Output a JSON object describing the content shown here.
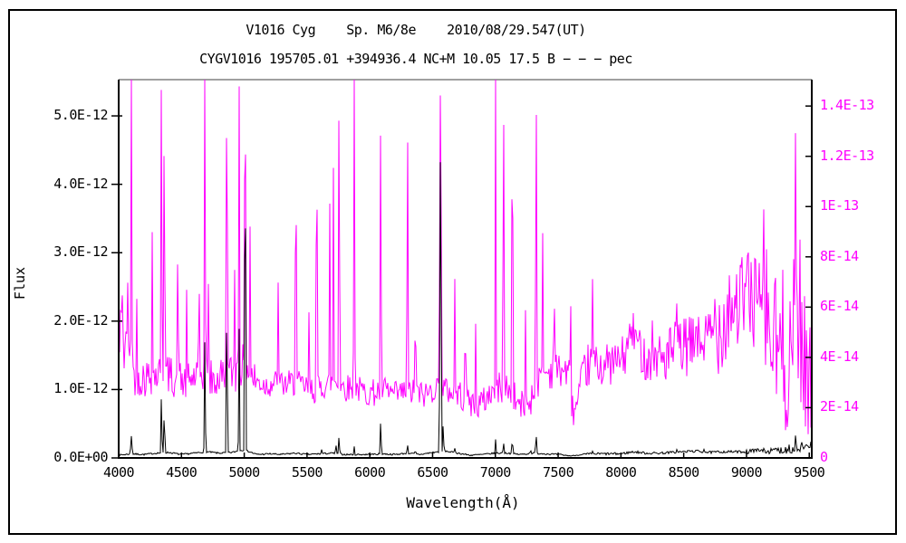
{
  "figure": {
    "title_line1": "V1016 Cyg    Sp. M6/8e    2010/08/29.547(UT)",
    "title_line2": "CYGV1016 195705.01 +394936.4 NC+M 10.05 17.5 B − − − pec"
  },
  "colors": {
    "background": "#ffffff",
    "border": "#000000",
    "frame_top_line": "#808080",
    "black_series": "#000000",
    "magenta_series": "#ff00ff"
  },
  "chart_data": {
    "type": "line",
    "title": "V1016 Cyg  Sp. M6/8e  2010/08/29.547(UT)",
    "subtitle": "CYGV1016 195705.01 +394936.4 NC+M 10.05 17.5 B − − − pec",
    "xlabel": "Wavelength(Å)",
    "ylabel_left": "Flux",
    "grid": false,
    "legend": "none",
    "x_range": [
      4000,
      9520
    ],
    "x_tick_values": [
      4000,
      4500,
      5000,
      5500,
      6000,
      6500,
      7000,
      7500,
      8000,
      8500,
      9000,
      9500
    ],
    "x_tick_labels": [
      "4000",
      "4500",
      "5000",
      "5500",
      "6000",
      "6500",
      "7000",
      "7500",
      "8000",
      "8500",
      "9000",
      "9500"
    ],
    "y_left": {
      "unit": "1e-12",
      "range": [
        0,
        5.53
      ],
      "tick_values": [
        0,
        1,
        2,
        3,
        4,
        5
      ],
      "tick_labels": [
        "0.0E+00",
        "1.0E-12",
        "2.0E-12",
        "3.0E-12",
        "4.0E-12",
        "5.0E-12"
      ],
      "color": "#000000"
    },
    "y_right": {
      "unit": "1e-14",
      "range": [
        0,
        15.05
      ],
      "tick_values": [
        0,
        2,
        4,
        6,
        8,
        10,
        12,
        14
      ],
      "tick_labels": [
        "0",
        "2E-14",
        "4E-14",
        "6E-14",
        "8E-14",
        "1E-13",
        "1.2E-13",
        "1.4E-13"
      ],
      "color": "#ff00ff"
    },
    "series": [
      {
        "name": "black-spectrum-left-axis",
        "axis": "left",
        "color": "#000000",
        "unit": "1e-12",
        "baseline": [
          [
            4000,
            0.04
          ],
          [
            4100,
            0.06
          ],
          [
            4200,
            0.05
          ],
          [
            4300,
            0.07
          ],
          [
            4400,
            0.08
          ],
          [
            4500,
            0.05
          ],
          [
            4600,
            0.07
          ],
          [
            4700,
            0.09
          ],
          [
            4800,
            0.07
          ],
          [
            4900,
            0.08
          ],
          [
            5000,
            0.12
          ],
          [
            5100,
            0.05
          ],
          [
            5200,
            0.06
          ],
          [
            5300,
            0.05
          ],
          [
            5400,
            0.07
          ],
          [
            5500,
            0.05
          ],
          [
            5600,
            0.06
          ],
          [
            5700,
            0.07
          ],
          [
            5800,
            0.05
          ],
          [
            5900,
            0.05
          ],
          [
            6000,
            0.05
          ],
          [
            6100,
            0.06
          ],
          [
            6200,
            0.05
          ],
          [
            6300,
            0.07
          ],
          [
            6400,
            0.05
          ],
          [
            6500,
            0.08
          ],
          [
            6600,
            0.1
          ],
          [
            6700,
            0.07
          ],
          [
            6800,
            0.04
          ],
          [
            6900,
            0.05
          ],
          [
            7000,
            0.07
          ],
          [
            7100,
            0.07
          ],
          [
            7200,
            0.05
          ],
          [
            7300,
            0.07
          ],
          [
            7400,
            0.06
          ],
          [
            7500,
            0.05
          ],
          [
            7600,
            0.03
          ],
          [
            7700,
            0.05
          ],
          [
            7800,
            0.06
          ],
          [
            7900,
            0.06
          ],
          [
            8000,
            0.06
          ],
          [
            8100,
            0.09
          ],
          [
            8200,
            0.07
          ],
          [
            8300,
            0.07
          ],
          [
            8400,
            0.08
          ],
          [
            8500,
            0.09
          ],
          [
            8600,
            0.1
          ],
          [
            8700,
            0.08
          ],
          [
            8800,
            0.09
          ],
          [
            8900,
            0.09
          ],
          [
            9000,
            0.09
          ],
          [
            9100,
            0.1
          ],
          [
            9200,
            0.1
          ],
          [
            9300,
            0.12
          ],
          [
            9400,
            0.13
          ],
          [
            9500,
            0.14
          ],
          [
            9520,
            0.12
          ]
        ],
        "peaks": [
          [
            4101,
            0.32,
            10
          ],
          [
            4340,
            0.95,
            8
          ],
          [
            4363,
            0.73,
            8
          ],
          [
            4686,
            1.8,
            8
          ],
          [
            4861,
            2.55,
            8
          ],
          [
            4959,
            2.08,
            7
          ],
          [
            5007,
            5.14,
            9
          ],
          [
            5617,
            0.13,
            7
          ],
          [
            5730,
            0.22,
            7
          ],
          [
            5755,
            0.36,
            7
          ],
          [
            5876,
            0.17,
            7
          ],
          [
            6087,
            0.64,
            7
          ],
          [
            6300,
            0.22,
            7
          ],
          [
            6363,
            0.12,
            7
          ],
          [
            6563,
            5.03,
            10
          ],
          [
            6584,
            0.5,
            8
          ],
          [
            6678,
            0.15,
            7
          ],
          [
            7002,
            0.28,
            7
          ],
          [
            7065,
            0.25,
            7
          ],
          [
            7135,
            0.32,
            7
          ],
          [
            7281,
            0.12,
            7
          ],
          [
            7325,
            0.35,
            9
          ],
          [
            7774,
            0.1,
            8
          ],
          [
            8446,
            0.13,
            7
          ],
          [
            8545,
            0.11,
            7
          ],
          [
            8620,
            0.11,
            7
          ],
          [
            8662,
            0.13,
            7
          ],
          [
            9069,
            0.16,
            7
          ],
          [
            9139,
            0.15,
            7
          ],
          [
            9229,
            0.16,
            7
          ],
          [
            9340,
            0.2,
            6
          ],
          [
            9392,
            0.4,
            7
          ],
          [
            9440,
            0.24,
            6
          ],
          [
            9480,
            0.26,
            6
          ],
          [
            9515,
            0.3,
            6
          ]
        ],
        "noise": [
          [
            4000,
            7550,
            0.012
          ],
          [
            7550,
            7700,
            0.006
          ],
          [
            7700,
            9000,
            0.018
          ],
          [
            9000,
            9250,
            0.04
          ],
          [
            9250,
            9520,
            0.06
          ]
        ],
        "min": 0.01
      },
      {
        "name": "magenta-spectrum-right-axis",
        "axis": "right",
        "color": "#ff00ff",
        "unit": "1e-14",
        "baseline": [
          [
            4000,
            4.2
          ],
          [
            4030,
            5.0
          ],
          [
            4060,
            3.6
          ],
          [
            4120,
            3.3
          ],
          [
            4200,
            3.2
          ],
          [
            4280,
            3.3
          ],
          [
            4360,
            3.4
          ],
          [
            4440,
            3.2
          ],
          [
            4520,
            3.0
          ],
          [
            4600,
            3.2
          ],
          [
            4680,
            3.4
          ],
          [
            4760,
            3.0
          ],
          [
            4840,
            3.4
          ],
          [
            4920,
            3.3
          ],
          [
            5000,
            3.8
          ],
          [
            5080,
            3.1
          ],
          [
            5160,
            2.9
          ],
          [
            5240,
            3.0
          ],
          [
            5320,
            2.9
          ],
          [
            5400,
            3.0
          ],
          [
            5480,
            2.8
          ],
          [
            5560,
            2.7
          ],
          [
            5640,
            2.9
          ],
          [
            5720,
            3.1
          ],
          [
            5800,
            2.8
          ],
          [
            5880,
            2.8
          ],
          [
            5960,
            2.6
          ],
          [
            6040,
            2.6
          ],
          [
            6120,
            2.7
          ],
          [
            6200,
            2.5
          ],
          [
            6280,
            2.6
          ],
          [
            6360,
            2.6
          ],
          [
            6440,
            2.5
          ],
          [
            6520,
            2.8
          ],
          [
            6600,
            2.7
          ],
          [
            6680,
            2.6
          ],
          [
            6760,
            2.4
          ],
          [
            6840,
            2.1
          ],
          [
            6900,
            2.2
          ],
          [
            6960,
            2.6
          ],
          [
            7020,
            2.8
          ],
          [
            7100,
            2.8
          ],
          [
            7160,
            2.3
          ],
          [
            7220,
            2.0
          ],
          [
            7280,
            2.3
          ],
          [
            7340,
            3.0
          ],
          [
            7400,
            3.4
          ],
          [
            7480,
            3.5
          ],
          [
            7560,
            3.5
          ],
          [
            7594,
            3.2
          ],
          [
            7615,
            1.9
          ],
          [
            7650,
            2.0
          ],
          [
            7690,
            3.1
          ],
          [
            7740,
            3.7
          ],
          [
            7800,
            3.7
          ],
          [
            7880,
            3.7
          ],
          [
            7960,
            3.8
          ],
          [
            8040,
            4.1
          ],
          [
            8085,
            5.1
          ],
          [
            8130,
            4.6
          ],
          [
            8200,
            3.9
          ],
          [
            8280,
            4.0
          ],
          [
            8360,
            4.0
          ],
          [
            8440,
            4.3
          ],
          [
            8520,
            4.4
          ],
          [
            8600,
            4.5
          ],
          [
            8680,
            4.7
          ],
          [
            8760,
            5.1
          ],
          [
            8840,
            5.7
          ],
          [
            8920,
            6.1
          ],
          [
            9000,
            6.4
          ],
          [
            9080,
            6.1
          ],
          [
            9150,
            5.6
          ],
          [
            9220,
            4.4
          ],
          [
            9290,
            4.1
          ],
          [
            9360,
            4.5
          ],
          [
            9420,
            4.6
          ],
          [
            9470,
            3.8
          ],
          [
            9520,
            2.8
          ]
        ],
        "peaks": [
          [
            4026,
            7.5,
            7
          ],
          [
            4070,
            8.5,
            7
          ],
          [
            4101,
            16,
            8
          ],
          [
            4144,
            6.5,
            6
          ],
          [
            4267,
            9.0,
            7
          ],
          [
            4340,
            16,
            8
          ],
          [
            4363,
            16,
            7
          ],
          [
            4471,
            9.5,
            7
          ],
          [
            4541,
            6.8,
            6
          ],
          [
            4640,
            8.0,
            7
          ],
          [
            4686,
            16,
            8
          ],
          [
            4713,
            8.0,
            6
          ],
          [
            4861,
            16,
            9
          ],
          [
            4922,
            9.0,
            6
          ],
          [
            4959,
            16,
            7
          ],
          [
            5007,
            16,
            10
          ],
          [
            5047,
            10.0,
            6
          ],
          [
            5270,
            7.0,
            6
          ],
          [
            5411,
            14.8,
            7
          ],
          [
            5517,
            7.0,
            6
          ],
          [
            5577,
            16,
            7
          ],
          [
            5680,
            12.0,
            6
          ],
          [
            5711,
            13.0,
            6
          ],
          [
            5755,
            16,
            8
          ],
          [
            5876,
            16,
            8
          ],
          [
            6087,
            16,
            7
          ],
          [
            6300,
            16,
            7
          ],
          [
            6363,
            7.5,
            6
          ],
          [
            6563,
            16,
            12
          ],
          [
            6678,
            8.0,
            6
          ],
          [
            6760,
            6.8,
            6
          ],
          [
            6844,
            6.0,
            6
          ],
          [
            7002,
            16,
            7
          ],
          [
            7065,
            16,
            8
          ],
          [
            7135,
            16,
            8
          ],
          [
            7240,
            6.0,
            5
          ],
          [
            7325,
            16,
            8
          ],
          [
            7377,
            9.0,
            6
          ],
          [
            7468,
            8.0,
            6
          ],
          [
            7600,
            6.5,
            5
          ],
          [
            7774,
            7.2,
            8
          ],
          [
            8067,
            5.8,
            6
          ],
          [
            8252,
            6.2,
            6
          ],
          [
            8446,
            6.5,
            7
          ],
          [
            8600,
            6.3,
            6
          ],
          [
            8750,
            7.0,
            6
          ],
          [
            8865,
            7.8,
            6
          ],
          [
            9015,
            8.2,
            6
          ],
          [
            9069,
            9.8,
            7
          ],
          [
            9139,
            11.2,
            6
          ],
          [
            9229,
            9.0,
            6
          ],
          [
            9392,
            16,
            7
          ],
          [
            9425,
            10.0,
            5
          ]
        ],
        "noise": [
          [
            4000,
            4060,
            1.8
          ],
          [
            4060,
            4100,
            1.2
          ],
          [
            4100,
            5100,
            0.8
          ],
          [
            5100,
            6700,
            0.55
          ],
          [
            6700,
            7000,
            0.6
          ],
          [
            7000,
            7350,
            0.65
          ],
          [
            7350,
            7700,
            0.7
          ],
          [
            7700,
            8300,
            0.85
          ],
          [
            8300,
            8750,
            1.2
          ],
          [
            8750,
            9150,
            1.9
          ],
          [
            9150,
            9420,
            3.4
          ],
          [
            9420,
            9520,
            2.8
          ]
        ],
        "min": 0.1
      }
    ]
  }
}
